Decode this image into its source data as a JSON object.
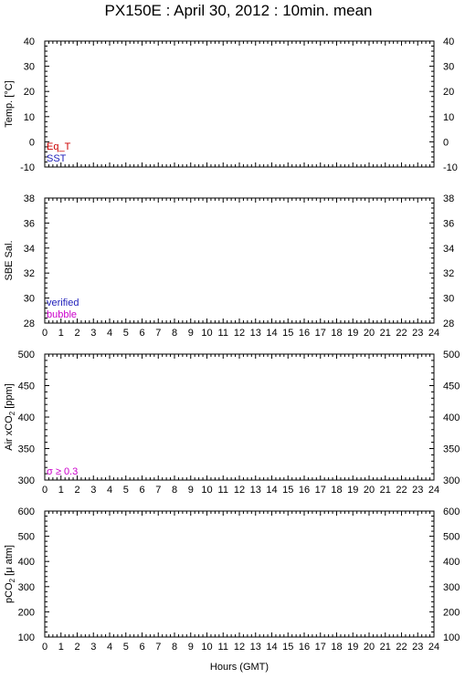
{
  "title": "PX150E : April 30, 2012 : 10min. mean",
  "chart_data": [
    {
      "type": "line",
      "ylabel": "Temp. [°C]",
      "ylim": [
        -10,
        40
      ],
      "yticks": [
        -10,
        0,
        10,
        20,
        30,
        40
      ],
      "xlim": [
        0,
        24
      ],
      "xticks": [
        0,
        1,
        2,
        3,
        4,
        5,
        6,
        7,
        8,
        9,
        10,
        11,
        12,
        13,
        14,
        15,
        16,
        17,
        18,
        19,
        20,
        21,
        22,
        23,
        24
      ],
      "show_x_tick_labels": false,
      "legend": [
        {
          "name": "Eq_T",
          "color": "#cc0000"
        },
        {
          "name": "SST",
          "color": "#2222bb"
        }
      ],
      "legend_position": "bottom-left",
      "series": []
    },
    {
      "type": "line",
      "ylabel": "SBE Sal.",
      "ylim": [
        28,
        38
      ],
      "yticks": [
        28,
        30,
        32,
        34,
        36,
        38
      ],
      "xlim": [
        0,
        24
      ],
      "xticks": [
        0,
        1,
        2,
        3,
        4,
        5,
        6,
        7,
        8,
        9,
        10,
        11,
        12,
        13,
        14,
        15,
        16,
        17,
        18,
        19,
        20,
        21,
        22,
        23,
        24
      ],
      "show_x_tick_labels": true,
      "legend": [
        {
          "name": "verified",
          "color": "#2222bb"
        },
        {
          "name": "bubble",
          "color": "#cc00cc"
        }
      ],
      "legend_position": "bottom-left",
      "series": []
    },
    {
      "type": "line",
      "ylabel_parts": [
        "Air xCO",
        "2",
        " [ppm]"
      ],
      "ylim": [
        300,
        500
      ],
      "yticks": [
        300,
        350,
        400,
        450,
        500
      ],
      "xlim": [
        0,
        24
      ],
      "xticks": [
        0,
        1,
        2,
        3,
        4,
        5,
        6,
        7,
        8,
        9,
        10,
        11,
        12,
        13,
        14,
        15,
        16,
        17,
        18,
        19,
        20,
        21,
        22,
        23,
        24
      ],
      "show_x_tick_labels": true,
      "legend": [
        {
          "name": "σ ≥ 0.3",
          "color": "#cc00cc"
        }
      ],
      "legend_position": "bottom-left",
      "series": []
    },
    {
      "type": "line",
      "ylabel_parts": [
        "pCO",
        "2",
        " [μ atm]"
      ],
      "ylim": [
        100,
        600
      ],
      "yticks": [
        100,
        200,
        300,
        400,
        500,
        600
      ],
      "xlim": [
        0,
        24
      ],
      "xticks": [
        0,
        1,
        2,
        3,
        4,
        5,
        6,
        7,
        8,
        9,
        10,
        11,
        12,
        13,
        14,
        15,
        16,
        17,
        18,
        19,
        20,
        21,
        22,
        23,
        24
      ],
      "show_x_tick_labels": true,
      "xlabel": "Hours (GMT)",
      "legend": [],
      "series": []
    }
  ]
}
